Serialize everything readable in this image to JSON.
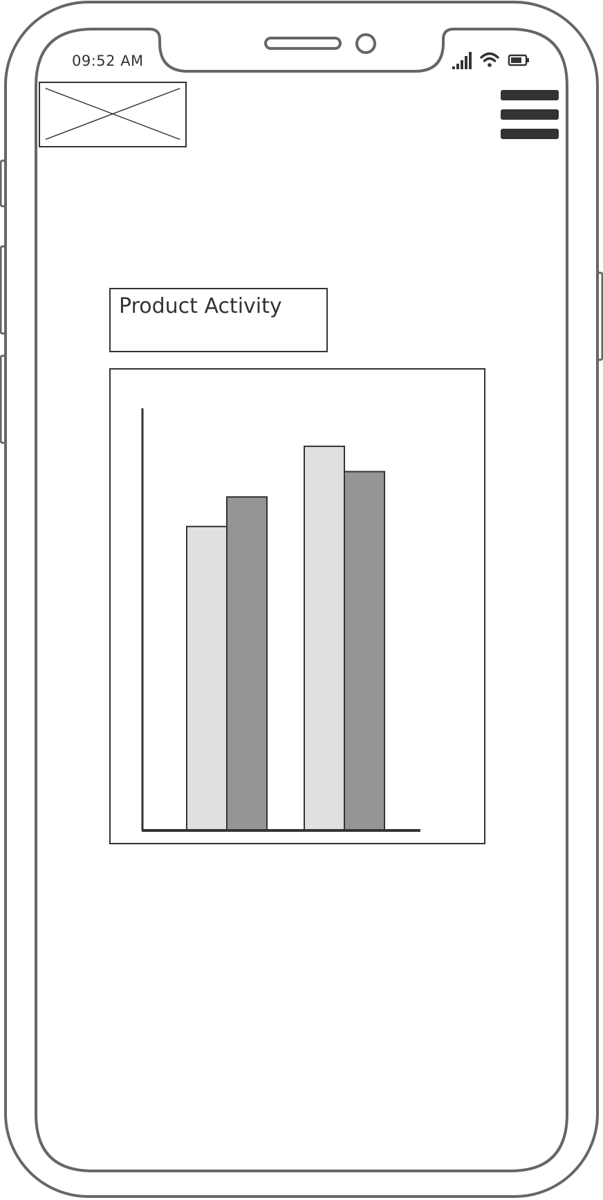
{
  "status_bar": {
    "time": "09:52 AM",
    "icons": [
      "signal-icon",
      "wifi-icon",
      "battery-icon"
    ]
  },
  "header": {
    "logo": "image-placeholder-icon",
    "menu_icon": "hamburger-menu-icon"
  },
  "main": {
    "title": "Product Activity"
  },
  "colors": {
    "stroke": "#333333",
    "frame": "#666666",
    "series_light": "#e0e0e0",
    "series_dark": "#959595",
    "background": "#ffffff"
  },
  "chart_data": {
    "type": "bar",
    "categories": [
      "",
      ""
    ],
    "series": [
      {
        "values": [
          72,
          91
        ]
      },
      {
        "values": [
          79,
          85
        ]
      }
    ],
    "ylim": [
      0,
      100
    ],
    "grid": false,
    "legend": "none",
    "title": "",
    "xlabel": "",
    "ylabel": ""
  }
}
